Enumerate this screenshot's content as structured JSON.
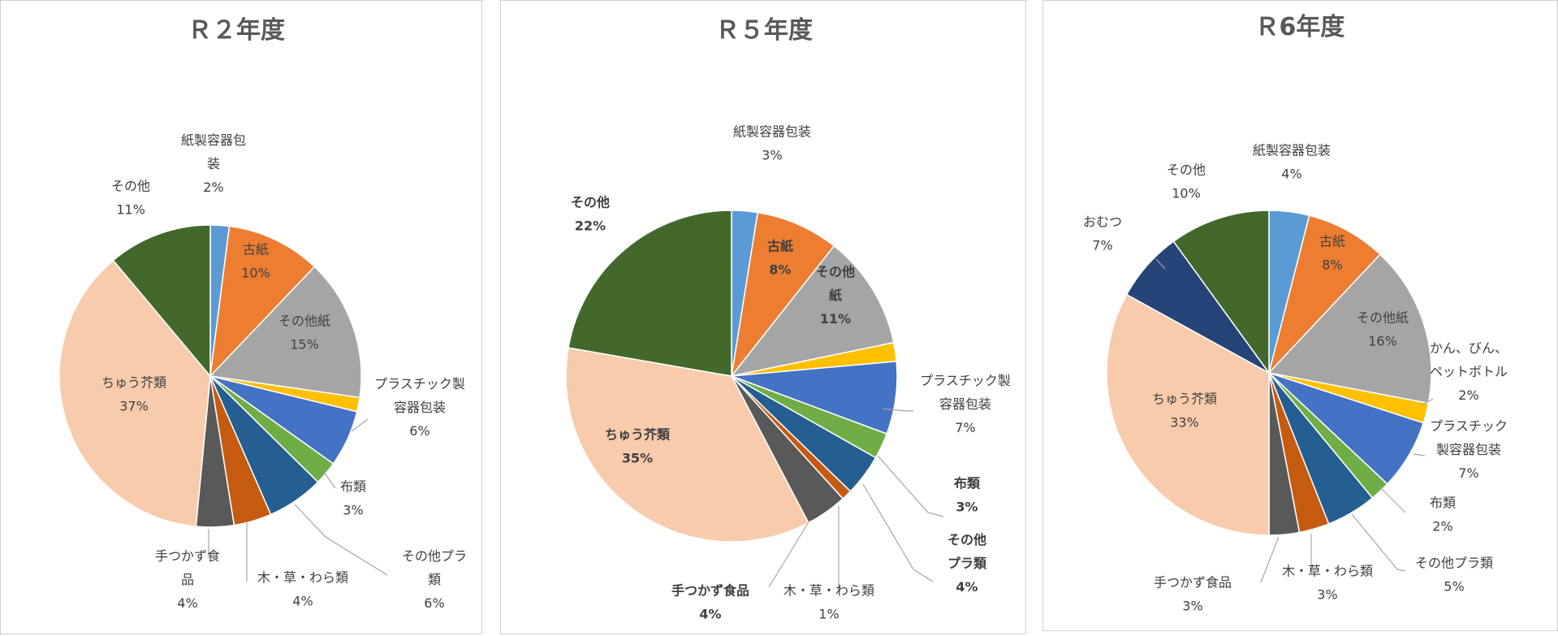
{
  "colors": {
    "paper_pack": "#5B9BD5",
    "old_paper": "#ED7D31",
    "other_paper": "#A5A5A5",
    "cans_bottles": "#FFC000",
    "plastic_pack": "#4472C4",
    "cloth": "#70AD47",
    "other_plastic": "#255E91",
    "wood_grass": "#C55A11",
    "untouched_food": "#595959",
    "kitchen": "#F8CBAD",
    "diaper": "#264478",
    "other": "#43682B"
  },
  "chart_data": [
    {
      "type": "pie",
      "title": "Ｒ２年度",
      "slices": [
        {
          "key": "paper_pack",
          "label": [
            "紙製容器包",
            "装"
          ],
          "value": 2,
          "pct": "2%"
        },
        {
          "key": "old_paper",
          "label": [
            "古紙"
          ],
          "value": 10,
          "pct": "10%"
        },
        {
          "key": "other_paper",
          "label": [
            "その他紙"
          ],
          "value": 15,
          "pct": "15%"
        },
        {
          "key": "cans_bottles",
          "label": [],
          "value": 1.5,
          "pct": ""
        },
        {
          "key": "plastic_pack",
          "label": [
            "プラスチック製",
            "容器包装"
          ],
          "value": 6,
          "pct": "6%"
        },
        {
          "key": "cloth",
          "label": [
            "布類"
          ],
          "value": 2.5,
          "pct": "3%"
        },
        {
          "key": "other_plastic",
          "label": [
            "その他プラ",
            "類"
          ],
          "value": 6,
          "pct": "6%"
        },
        {
          "key": "wood_grass",
          "label": [
            "木・草・わら類"
          ],
          "value": 4,
          "pct": "4%"
        },
        {
          "key": "untouched_food",
          "label": [
            "手つかず食",
            "品"
          ],
          "value": 4,
          "pct": "4%"
        },
        {
          "key": "kitchen",
          "label": [
            "ちゅう芥類"
          ],
          "value": 37,
          "pct": "37%"
        },
        {
          "key": "other",
          "label": [
            "その他"
          ],
          "value": 11,
          "pct": "11%"
        }
      ]
    },
    {
      "type": "pie",
      "title": "Ｒ５年度",
      "slices": [
        {
          "key": "paper_pack",
          "label": [
            "紙製容器包装"
          ],
          "value": 2.5,
          "pct": "3%"
        },
        {
          "key": "old_paper",
          "label": [
            "古紙"
          ],
          "value": 8,
          "pct": "8%"
        },
        {
          "key": "other_paper",
          "label": [
            "その他",
            "紙"
          ],
          "value": 11,
          "pct": "11%"
        },
        {
          "key": "cans_bottles",
          "label": [],
          "value": 1.8,
          "pct": ""
        },
        {
          "key": "plastic_pack",
          "label": [
            "プラスチック製",
            "容器包装"
          ],
          "value": 7,
          "pct": "7%"
        },
        {
          "key": "cloth",
          "label": [
            "布類"
          ],
          "value": 2.5,
          "pct": "3%"
        },
        {
          "key": "other_plastic",
          "label": [
            "その他",
            "プラ類"
          ],
          "value": 4,
          "pct": "4%"
        },
        {
          "key": "wood_grass",
          "label": [
            "木・草・わら類"
          ],
          "value": 1,
          "pct": "1%"
        },
        {
          "key": "untouched_food",
          "label": [
            "手つかず食品"
          ],
          "value": 4,
          "pct": "4%"
        },
        {
          "key": "kitchen",
          "label": [
            "ちゅう芥類"
          ],
          "value": 35,
          "pct": "35%"
        },
        {
          "key": "other",
          "label": [
            "その他"
          ],
          "value": 22,
          "pct": "22%"
        }
      ]
    },
    {
      "type": "pie",
      "title": "Ｒ6年度",
      "slices": [
        {
          "key": "paper_pack",
          "label": [
            "紙製容器包装"
          ],
          "value": 4,
          "pct": "4%"
        },
        {
          "key": "old_paper",
          "label": [
            "古紙"
          ],
          "value": 8,
          "pct": "8%"
        },
        {
          "key": "other_paper",
          "label": [
            "その他紙"
          ],
          "value": 16,
          "pct": "16%"
        },
        {
          "key": "cans_bottles",
          "label": [
            "かん、びん、",
            "ペットボトル"
          ],
          "value": 2,
          "pct": "2%"
        },
        {
          "key": "plastic_pack",
          "label": [
            "プラスチック",
            "製容器包装"
          ],
          "value": 7,
          "pct": "7%"
        },
        {
          "key": "cloth",
          "label": [
            "布類"
          ],
          "value": 2,
          "pct": "2%"
        },
        {
          "key": "other_plastic",
          "label": [
            "その他プラ類"
          ],
          "value": 5,
          "pct": "5%"
        },
        {
          "key": "wood_grass",
          "label": [
            "木・草・わら類"
          ],
          "value": 3,
          "pct": "3%"
        },
        {
          "key": "untouched_food",
          "label": [
            "手つかず食品"
          ],
          "value": 3,
          "pct": "3%"
        },
        {
          "key": "kitchen",
          "label": [
            "ちゅう芥類"
          ],
          "value": 33,
          "pct": "33%"
        },
        {
          "key": "diaper",
          "label": [
            "おむつ"
          ],
          "value": 7,
          "pct": "7%"
        },
        {
          "key": "other",
          "label": [
            "その他"
          ],
          "value": 10,
          "pct": "10%"
        }
      ]
    }
  ]
}
